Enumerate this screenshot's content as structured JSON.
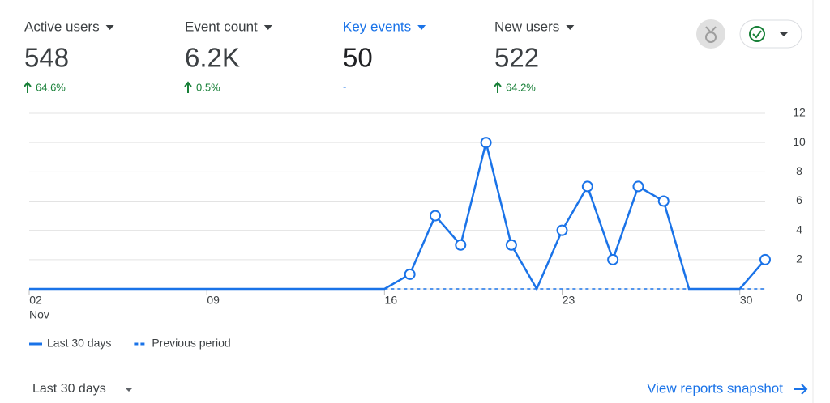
{
  "metrics": [
    {
      "name": "Active users",
      "value": "548",
      "change": "64.6%"
    },
    {
      "name": "Event count",
      "value": "6.2K",
      "change": "0.5%"
    },
    {
      "name": "Key events",
      "value": "50",
      "change": "-"
    },
    {
      "name": "New users",
      "value": "522",
      "change": "64.2%"
    }
  ],
  "chart_data": {
    "type": "line",
    "categories": [
      "02",
      null,
      null,
      null,
      null,
      null,
      null,
      "09",
      null,
      null,
      null,
      null,
      null,
      null,
      "16",
      null,
      null,
      null,
      null,
      null,
      null,
      "23",
      null,
      null,
      null,
      null,
      null,
      null,
      "30",
      null
    ],
    "x_sublabel": "Nov",
    "series": [
      {
        "name": "Last 30 days",
        "color": "#1a73e8",
        "dashed": false,
        "values": [
          0,
          0,
          0,
          0,
          0,
          0,
          0,
          0,
          0,
          0,
          0,
          0,
          0,
          0,
          0,
          1,
          5,
          3,
          10,
          3,
          0,
          4,
          7,
          2,
          7,
          6,
          0,
          0,
          0,
          2
        ]
      },
      {
        "name": "Previous period",
        "color": "#1a73e8",
        "dashed": true,
        "values": [
          null,
          null,
          null,
          null,
          null,
          null,
          null,
          null,
          null,
          null,
          null,
          null,
          null,
          null,
          0,
          0,
          0,
          0,
          0,
          0,
          0,
          0,
          0,
          0,
          0,
          0,
          0,
          0,
          0,
          0
        ]
      }
    ],
    "ylim": [
      0,
      12
    ],
    "yticks": [
      0,
      2,
      4,
      6,
      8,
      10,
      12
    ],
    "grid": true
  },
  "footer": {
    "range": "Last 30 days",
    "link": "View reports snapshot"
  }
}
